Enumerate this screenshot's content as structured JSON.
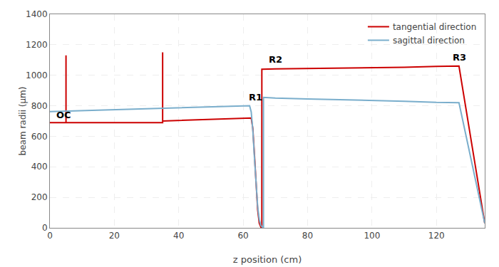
{
  "chart_data": {
    "type": "line",
    "xlabel": "z position (cm)",
    "ylabel": "beam radii (μm)",
    "xlim": [
      0,
      135
    ],
    "ylim": [
      0,
      1400
    ],
    "xticks": [
      0,
      20,
      40,
      60,
      80,
      100,
      120
    ],
    "yticks": [
      0,
      200,
      400,
      600,
      800,
      1000,
      1200,
      1400
    ],
    "grid": true,
    "legend": "upper right",
    "series": [
      {
        "name": "tangential direction",
        "color": "#cc0000",
        "x": [
          0,
          5.0,
          5.0,
          5.0,
          5.0,
          35.0,
          35.0,
          35.0,
          35.0,
          62.5,
          62.5,
          63.0,
          63.5,
          64.0,
          64.5,
          65.0,
          65.5,
          65.8,
          65.8,
          65.8,
          65.8,
          70.0,
          80.0,
          90.0,
          100.0,
          110.0,
          120.0,
          126.0,
          127.0,
          127.0,
          135.0
        ],
        "values": [
          690,
          690,
          690,
          1130,
          690,
          690,
          690,
          1150,
          700,
          720,
          720,
          650,
          480,
          280,
          120,
          30,
          5,
          5,
          5,
          1040,
          1040,
          1042,
          1044,
          1046,
          1048,
          1052,
          1058,
          1060,
          1060,
          1060,
          30
        ]
      },
      {
        "name": "sagittal direction",
        "color": "#7aaecc",
        "x": [
          0,
          62.0,
          62.0,
          62.5,
          63.0,
          63.5,
          64.0,
          64.5,
          65.0,
          65.5,
          66.0,
          66.3,
          66.3,
          70.0,
          80.0,
          90.0,
          100.0,
          110.0,
          120.0,
          126.0,
          127.0,
          127.0,
          135.0
        ],
        "values": [
          762,
          800,
          800,
          760,
          640,
          460,
          280,
          140,
          55,
          15,
          5,
          5,
          855,
          850,
          845,
          840,
          836,
          830,
          822,
          820,
          820,
          820,
          30
        ]
      }
    ],
    "annotations": [
      {
        "text": "OC",
        "x": 1.5,
        "y": 695
      },
      {
        "text": "R1",
        "x": 61.2,
        "y": 810
      },
      {
        "text": "R2",
        "x": 67.5,
        "y": 1060
      },
      {
        "text": "R3",
        "x": 124.5,
        "y": 1075
      }
    ]
  }
}
